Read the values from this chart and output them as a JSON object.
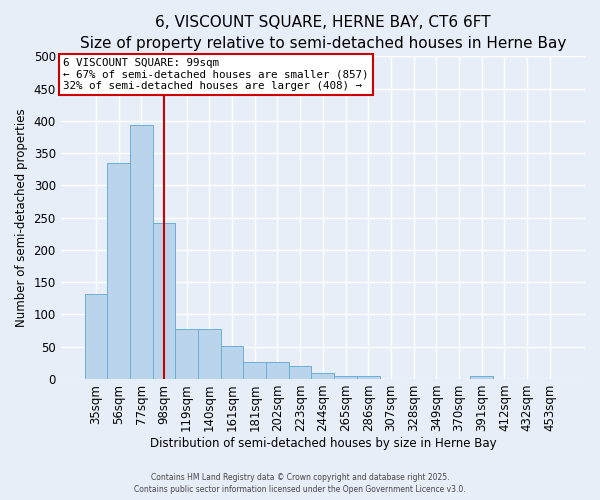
{
  "title": "6, VISCOUNT SQUARE, HERNE BAY, CT6 6FT",
  "subtitle": "Size of property relative to semi-detached houses in Herne Bay",
  "xlabel": "Distribution of semi-detached houses by size in Herne Bay",
  "ylabel": "Number of semi-detached properties",
  "bar_labels": [
    "35sqm",
    "56sqm",
    "77sqm",
    "98sqm",
    "119sqm",
    "140sqm",
    "161sqm",
    "181sqm",
    "202sqm",
    "223sqm",
    "244sqm",
    "265sqm",
    "286sqm",
    "307sqm",
    "328sqm",
    "349sqm",
    "370sqm",
    "391sqm",
    "412sqm",
    "432sqm",
    "453sqm"
  ],
  "bar_values": [
    131,
    335,
    393,
    241,
    78,
    78,
    51,
    26,
    26,
    20,
    9,
    5,
    5,
    0,
    0,
    0,
    0,
    5,
    0,
    0,
    0
  ],
  "bar_color": "#bad4ec",
  "bar_edge_color": "#6aaed6",
  "vline_x_index": 3,
  "vline_color": "#cc0000",
  "property_label": "6 VISCOUNT SQUARE: 99sqm",
  "annotation_line1": "← 67% of semi-detached houses are smaller (857)",
  "annotation_line2": "32% of semi-detached houses are larger (408) →",
  "annotation_box_facecolor": "#ffffff",
  "annotation_box_edgecolor": "#cc0000",
  "footer1": "Contains HM Land Registry data © Crown copyright and database right 2025.",
  "footer2": "Contains public sector information licensed under the Open Government Licence v3.0.",
  "ylim": [
    0,
    500
  ],
  "yticks": [
    0,
    50,
    100,
    150,
    200,
    250,
    300,
    350,
    400,
    450,
    500
  ],
  "background_color": "#e8eef8",
  "grid_color": "#ffffff",
  "title_fontsize": 11,
  "subtitle_fontsize": 10,
  "figsize": [
    6.0,
    5.0
  ],
  "dpi": 100
}
